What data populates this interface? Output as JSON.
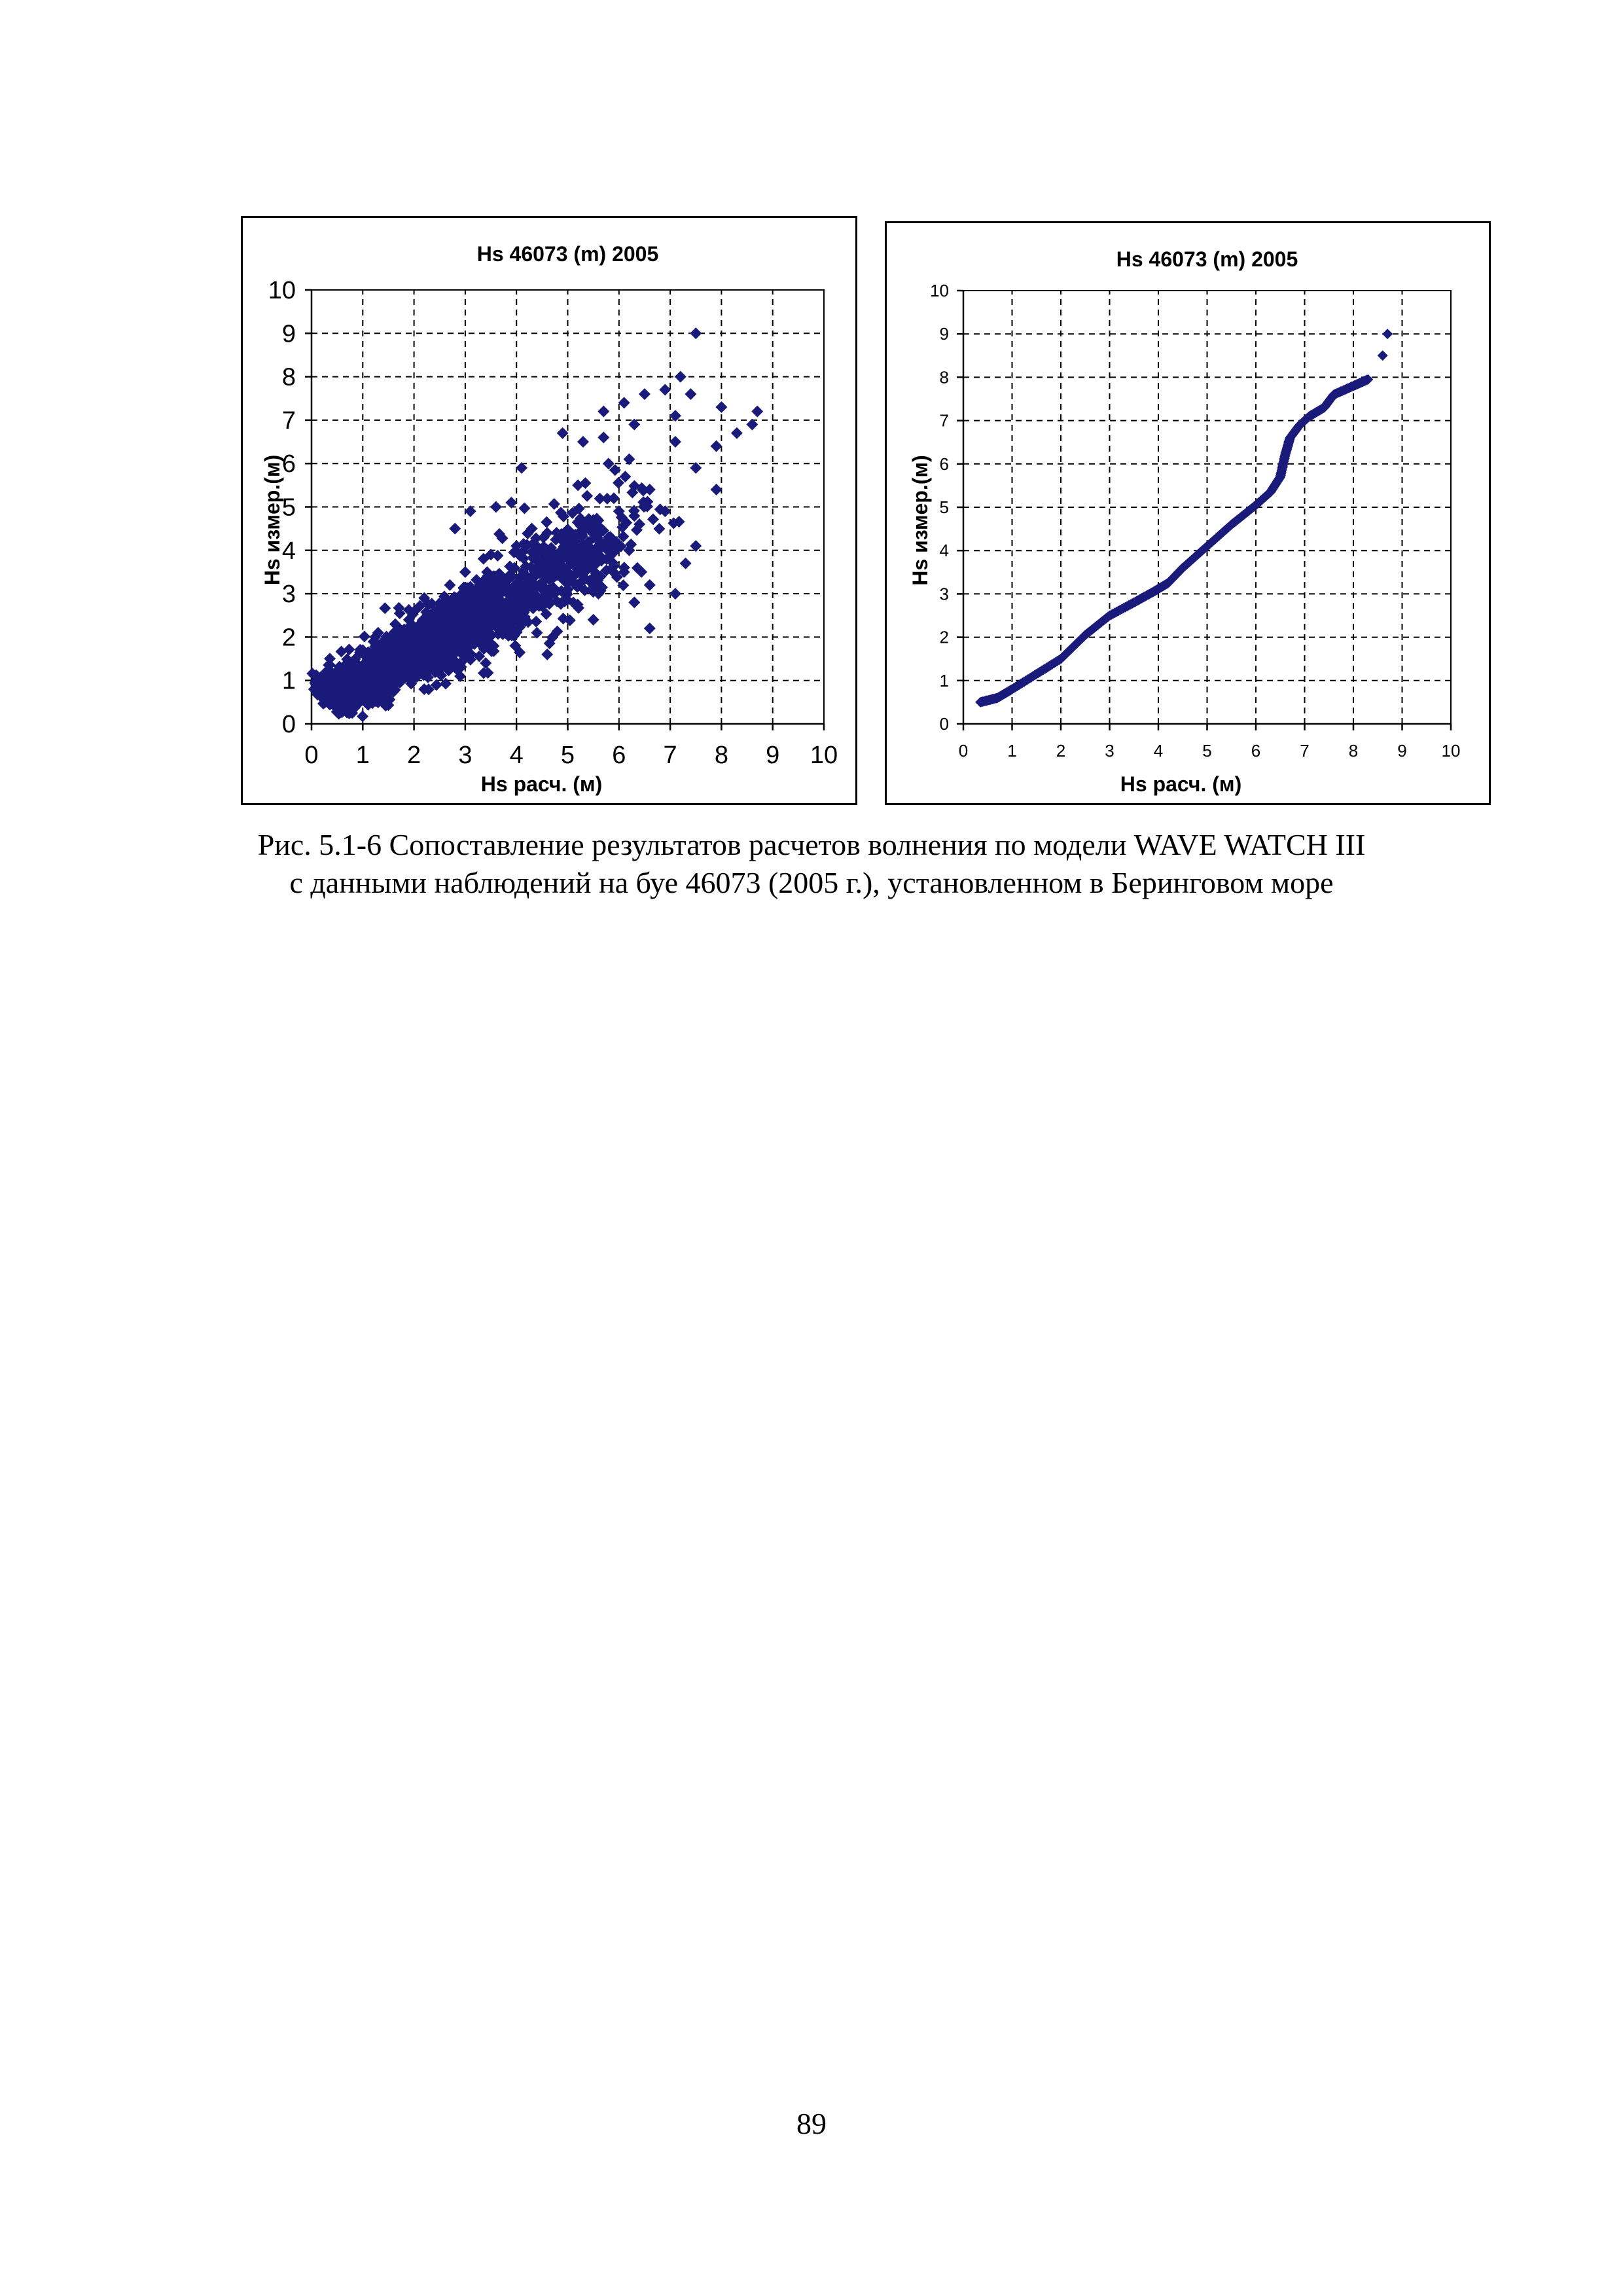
{
  "chart_data": [
    {
      "type": "scatter",
      "title": "Hs 46073 (m)  2005",
      "xlabel": "Hs расч. (м)",
      "ylabel": "Hs измер.(м)",
      "xlim": [
        0,
        10
      ],
      "ylim": [
        0,
        10
      ],
      "xticks": [
        "0",
        "1",
        "2",
        "3",
        "4",
        "5",
        "6",
        "7",
        "8",
        "9",
        "10"
      ],
      "yticks": [
        "0",
        "1",
        "2",
        "3",
        "4",
        "5",
        "6",
        "7",
        "8",
        "9",
        "10"
      ],
      "grid": true,
      "marker_color": "#1a1a7a",
      "points": [
        [
          7.5,
          9.0
        ],
        [
          7.2,
          8.0
        ],
        [
          7.4,
          7.6
        ],
        [
          6.9,
          7.7
        ],
        [
          6.5,
          7.6
        ],
        [
          8.0,
          7.3
        ],
        [
          8.7,
          7.2
        ],
        [
          7.1,
          7.1
        ],
        [
          8.6,
          6.9
        ],
        [
          8.3,
          6.7
        ],
        [
          7.9,
          6.4
        ],
        [
          6.1,
          7.4
        ],
        [
          5.7,
          7.2
        ],
        [
          6.3,
          6.9
        ],
        [
          7.1,
          6.5
        ],
        [
          6.2,
          6.1
        ],
        [
          5.7,
          6.6
        ],
        [
          7.5,
          5.9
        ],
        [
          7.9,
          5.4
        ],
        [
          7.5,
          4.1
        ],
        [
          7.3,
          3.7
        ],
        [
          7.1,
          3.0
        ],
        [
          6.3,
          2.8
        ],
        [
          6.6,
          3.2
        ],
        [
          6.1,
          3.5
        ],
        [
          6.0,
          4.9
        ],
        [
          5.9,
          5.2
        ],
        [
          5.3,
          6.5
        ],
        [
          4.9,
          6.7
        ],
        [
          4.1,
          5.9
        ],
        [
          3.9,
          5.1
        ],
        [
          3.6,
          5.0
        ],
        [
          3.1,
          4.9
        ],
        [
          2.8,
          4.5
        ],
        [
          2.7,
          3.2
        ],
        [
          3.9,
          2.6
        ],
        [
          4.4,
          2.1
        ],
        [
          5.5,
          2.4
        ],
        [
          4.6,
          1.6
        ],
        [
          6.6,
          2.2
        ],
        [
          5.6,
          3.0
        ],
        [
          4.8,
          3.9
        ],
        [
          4.3,
          4.5
        ],
        [
          5.2,
          5.5
        ],
        [
          5.5,
          4.7
        ],
        [
          3.4,
          1.4
        ],
        [
          2.9,
          1.1
        ],
        [
          2.2,
          0.8
        ],
        [
          1.2,
          0.5
        ],
        [
          0.4,
          0.7
        ],
        [
          0.6,
          0.9
        ],
        [
          0.9,
          1.1
        ],
        [
          1.5,
          1.4
        ],
        [
          1.8,
          2.0
        ],
        [
          2.4,
          1.5
        ],
        [
          2.2,
          2.9
        ],
        [
          2.6,
          2.2
        ],
        [
          3.3,
          2.6
        ],
        [
          3.0,
          3.5
        ],
        [
          3.7,
          3.1
        ],
        [
          4.2,
          3.4
        ],
        [
          4.5,
          2.9
        ],
        [
          4.7,
          3.6
        ],
        [
          5.1,
          4.2
        ],
        [
          5.4,
          3.6
        ],
        [
          5.8,
          4.3
        ],
        [
          6.4,
          4.6
        ],
        [
          6.6,
          5.4
        ],
        [
          6.9,
          4.9
        ],
        [
          4.0,
          4.1
        ],
        [
          3.5,
          3.9
        ],
        [
          1.0,
          1.7
        ],
        [
          1.3,
          2.1
        ],
        [
          1.6,
          1.2
        ],
        [
          2.0,
          1.8
        ],
        [
          1.1,
          0.7
        ],
        [
          0.8,
          0.6
        ],
        [
          0.5,
          0.8
        ],
        [
          2.7,
          1.8
        ],
        [
          3.2,
          2.2
        ],
        [
          3.8,
          2.5
        ],
        [
          4.1,
          2.8
        ],
        [
          2.4,
          2.6
        ],
        [
          1.9,
          2.4
        ],
        [
          1.4,
          1.6
        ],
        [
          5.0,
          3.1
        ],
        [
          5.6,
          4.0
        ],
        [
          6.2,
          4.0
        ],
        [
          4.6,
          4.4
        ],
        [
          3.6,
          3.4
        ]
      ],
      "density": [
        {
          "x0": 0.3,
          "y0": 0.55,
          "x1": 3.6,
          "y1": 2.8,
          "w": 0.28,
          "n": 1500
        },
        {
          "x0": 2.0,
          "y0": 1.5,
          "x1": 5.8,
          "y1": 4.3,
          "w": 0.38,
          "n": 500
        },
        {
          "x0": 3.5,
          "y0": 2.3,
          "x1": 6.6,
          "y1": 5.3,
          "w": 0.55,
          "n": 140
        }
      ]
    },
    {
      "type": "scatter",
      "title": "Hs 46073 (m)  2005",
      "xlabel": "Hs расч. (м)",
      "ylabel": "Hs измер.(м)",
      "xlim": [
        0,
        10
      ],
      "ylim": [
        0,
        10
      ],
      "xticks": [
        "0",
        "1",
        "2",
        "3",
        "4",
        "5",
        "6",
        "7",
        "8",
        "9",
        "10"
      ],
      "yticks": [
        "0",
        "1",
        "2",
        "3",
        "4",
        "5",
        "6",
        "7",
        "8",
        "9",
        "10"
      ],
      "grid": true,
      "marker_color": "#1a1a7a",
      "curve": [
        [
          0.35,
          0.5
        ],
        [
          0.7,
          0.6
        ],
        [
          1.0,
          0.8
        ],
        [
          1.5,
          1.15
        ],
        [
          2.0,
          1.5
        ],
        [
          2.5,
          2.05
        ],
        [
          3.0,
          2.5
        ],
        [
          3.5,
          2.8
        ],
        [
          3.9,
          3.05
        ],
        [
          4.2,
          3.25
        ],
        [
          4.5,
          3.6
        ],
        [
          5.0,
          4.1
        ],
        [
          5.5,
          4.6
        ],
        [
          6.0,
          5.05
        ],
        [
          6.3,
          5.35
        ],
        [
          6.5,
          5.7
        ],
        [
          6.6,
          6.2
        ],
        [
          6.7,
          6.6
        ],
        [
          6.9,
          6.9
        ],
        [
          7.1,
          7.1
        ],
        [
          7.4,
          7.3
        ],
        [
          7.6,
          7.6
        ],
        [
          8.0,
          7.8
        ],
        [
          8.3,
          7.95
        ]
      ],
      "points": [
        [
          8.6,
          8.5
        ],
        [
          8.7,
          9.0
        ]
      ]
    }
  ],
  "caption": {
    "line1": "Рис. 5.1-6 Сопоставление результатов расчетов волнения по модели WAVE WATCH III",
    "line2": "с данными наблюдений на буе 46073 (2005 г.), установленном в Беринговом море"
  },
  "page_number": "89"
}
